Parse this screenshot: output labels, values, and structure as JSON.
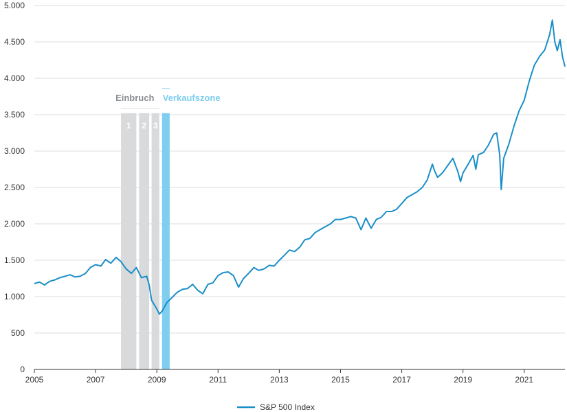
{
  "chart_data": {
    "type": "line",
    "title": "",
    "xlabel": "",
    "ylabel": "",
    "xlim": [
      2005.0,
      2022.33
    ],
    "ylim": [
      0,
      5000
    ],
    "grid": "horizontal",
    "legend_placement": "bottom-center",
    "y_ticks": [
      0,
      500,
      1000,
      1500,
      2000,
      2500,
      3000,
      3500,
      4000,
      4500,
      5000
    ],
    "y_tick_labels": [
      "0",
      "500",
      "1.000",
      "1.500",
      "2.000",
      "2.500",
      "3.000",
      "3.500",
      "4.000",
      "4.500",
      "5.000"
    ],
    "x_ticks": [
      2005,
      2007,
      2009,
      2011,
      2013,
      2015,
      2017,
      2019,
      2021
    ],
    "x_tick_labels": [
      "2005",
      "2007",
      "2009",
      "2011",
      "2013",
      "2015",
      "2017",
      "2019",
      "2021"
    ],
    "series": [
      {
        "name": "S&P 500 Index",
        "color": "#1a8ec8",
        "x": [
          2005.0,
          2005.17,
          2005.33,
          2005.5,
          2005.67,
          2005.83,
          2006.0,
          2006.17,
          2006.33,
          2006.5,
          2006.67,
          2006.83,
          2007.0,
          2007.17,
          2007.33,
          2007.42,
          2007.5,
          2007.67,
          2007.83,
          2008.0,
          2008.17,
          2008.33,
          2008.5,
          2008.67,
          2008.75,
          2008.83,
          2009.0,
          2009.08,
          2009.17,
          2009.33,
          2009.5,
          2009.67,
          2009.83,
          2010.0,
          2010.17,
          2010.33,
          2010.5,
          2010.67,
          2010.83,
          2011.0,
          2011.17,
          2011.33,
          2011.5,
          2011.67,
          2011.83,
          2012.0,
          2012.17,
          2012.33,
          2012.5,
          2012.67,
          2012.83,
          2013.0,
          2013.17,
          2013.33,
          2013.5,
          2013.67,
          2013.83,
          2014.0,
          2014.17,
          2014.33,
          2014.5,
          2014.67,
          2014.83,
          2015.0,
          2015.17,
          2015.33,
          2015.5,
          2015.67,
          2015.83,
          2016.0,
          2016.17,
          2016.33,
          2016.5,
          2016.67,
          2016.83,
          2017.0,
          2017.17,
          2017.33,
          2017.5,
          2017.67,
          2017.83,
          2018.0,
          2018.08,
          2018.17,
          2018.33,
          2018.5,
          2018.67,
          2018.83,
          2018.92,
          2019.0,
          2019.17,
          2019.33,
          2019.42,
          2019.5,
          2019.67,
          2019.83,
          2020.0,
          2020.1,
          2020.2,
          2020.25,
          2020.33,
          2020.5,
          2020.67,
          2020.83,
          2021.0,
          2021.17,
          2021.33,
          2021.5,
          2021.67,
          2021.83,
          2021.92,
          2022.0,
          2022.08,
          2022.17,
          2022.25,
          2022.33
        ],
        "values": [
          1180,
          1200,
          1160,
          1210,
          1230,
          1260,
          1280,
          1300,
          1270,
          1280,
          1320,
          1400,
          1440,
          1420,
          1510,
          1480,
          1460,
          1540,
          1480,
          1380,
          1320,
          1400,
          1260,
          1280,
          1160,
          950,
          830,
          760,
          800,
          920,
          990,
          1060,
          1100,
          1110,
          1170,
          1090,
          1040,
          1170,
          1190,
          1290,
          1330,
          1340,
          1290,
          1130,
          1250,
          1320,
          1400,
          1360,
          1380,
          1430,
          1420,
          1500,
          1570,
          1640,
          1620,
          1680,
          1780,
          1800,
          1880,
          1920,
          1960,
          2000,
          2060,
          2060,
          2080,
          2100,
          2080,
          1920,
          2080,
          1940,
          2060,
          2090,
          2170,
          2170,
          2200,
          2280,
          2360,
          2400,
          2440,
          2500,
          2600,
          2820,
          2720,
          2640,
          2700,
          2800,
          2900,
          2720,
          2580,
          2700,
          2820,
          2940,
          2750,
          2950,
          2980,
          3080,
          3230,
          3250,
          2950,
          2470,
          2900,
          3100,
          3350,
          3550,
          3700,
          3970,
          4180,
          4300,
          4390,
          4600,
          4800,
          4500,
          4380,
          4530,
          4300,
          4160
        ]
      }
    ],
    "annotations": {
      "zone_einbruch": "Einbruch",
      "zone_verkauf": "Verkaufszone",
      "phases": [
        {
          "label": "1",
          "start": 2007.83,
          "end": 2008.33,
          "zone": "einbruch"
        },
        {
          "label": "2",
          "start": 2008.42,
          "end": 2008.75,
          "zone": "einbruch"
        },
        {
          "label": "3",
          "start": 2008.83,
          "end": 2009.08,
          "zone": "einbruch"
        },
        {
          "label": "",
          "start": 2009.17,
          "end": 2009.42,
          "zone": "verkauf"
        }
      ],
      "band_top_value": 3520,
      "einbruch_color": "#d9dadb",
      "verkauf_color": "#7fcdef",
      "einbruch_text_color": "#8a8d92",
      "verkauf_text_color": "#7fcdef"
    }
  },
  "legend": {
    "label": "S&P 500 Index"
  }
}
